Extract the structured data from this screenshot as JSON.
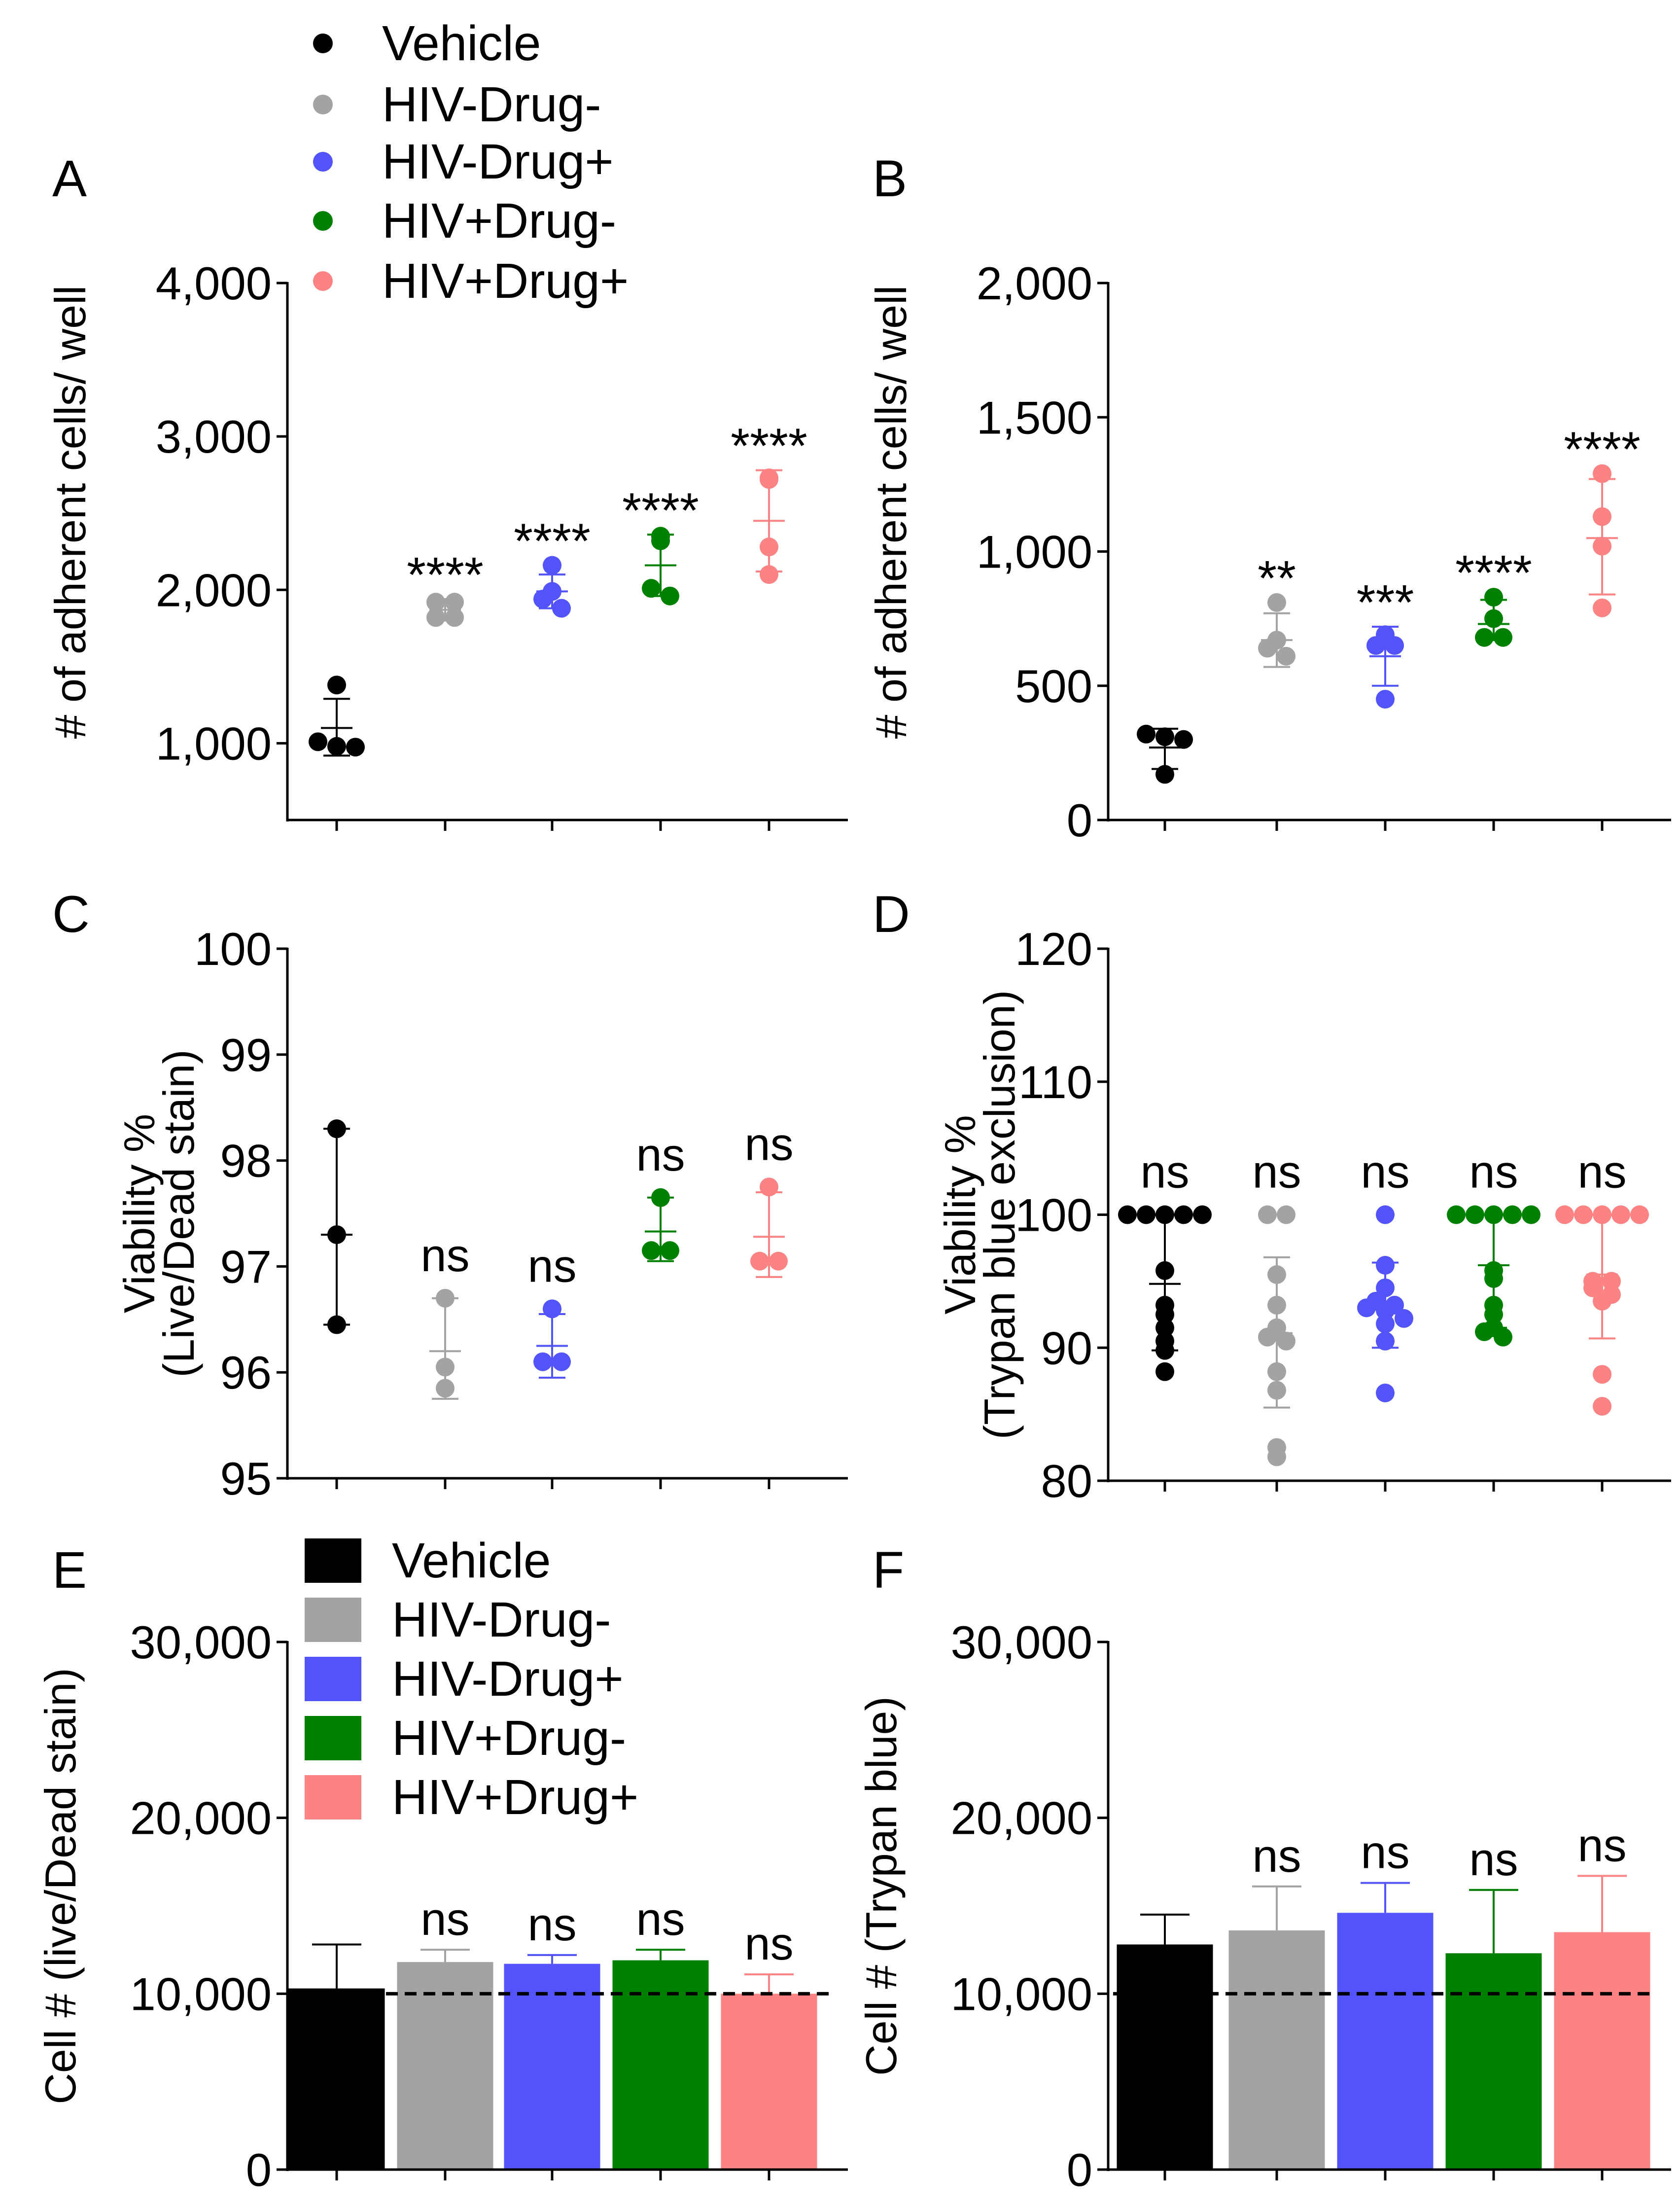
{
  "colors": {
    "Vehicle": "#000000",
    "HIV-Drug-": "#a3a3a6",
    "HIV-Drug+": "#5353fa",
    "HIV+Drug-": "#008000",
    "HIV+Drug+": "#fb8383"
  },
  "top_legend": {
    "entries": [
      "Vehicle",
      "HIV-Drug-",
      "HIV-Drug+",
      "HIV+Drug-",
      "HIV+Drug+"
    ]
  },
  "bar_legend": {
    "entries": [
      "Vehicle",
      "HIV-Drug-",
      "HIV-Drug+",
      "HIV+Drug-",
      "HIV+Drug+"
    ]
  },
  "chart_data": [
    {
      "panel": "A",
      "type": "scatter",
      "ylabel": "# of adherent cells/ well",
      "ylim": [
        500,
        4000
      ],
      "yticks": [
        1000,
        2000,
        3000,
        4000
      ],
      "ytick_labels": [
        "1,000",
        "2,000",
        "3,000",
        "4,000"
      ],
      "series": [
        {
          "name": "Vehicle",
          "points": [
            1380,
            1010,
            980,
            975
          ],
          "mean": 1100,
          "err": [
            920,
            1290
          ],
          "sig": ""
        },
        {
          "name": "HIV-Drug-",
          "points": [
            1920,
            1920,
            1820,
            1820
          ],
          "mean": 1870,
          "err": [
            1800,
            1940
          ],
          "sig": "****"
        },
        {
          "name": "HIV-Drug+",
          "points": [
            2160,
            1990,
            1940,
            1880
          ],
          "mean": 1990,
          "err": [
            1880,
            2100
          ],
          "sig": "****"
        },
        {
          "name": "HIV+Drug-",
          "points": [
            2350,
            2320,
            2010,
            1960
          ],
          "mean": 2160,
          "err": [
            1960,
            2360
          ],
          "sig": "****"
        },
        {
          "name": "HIV+Drug+",
          "points": [
            2730,
            2720,
            2280,
            2100
          ],
          "mean": 2450,
          "err": [
            2120,
            2780
          ],
          "sig": "****"
        }
      ]
    },
    {
      "panel": "B",
      "type": "scatter",
      "ylabel": "# of adherent cells/ well",
      "ylim": [
        0,
        2000
      ],
      "yticks": [
        0,
        500,
        1000,
        1500,
        2000
      ],
      "ytick_labels": [
        "0",
        "500",
        "1,000",
        "1,500",
        "2,000"
      ],
      "series": [
        {
          "name": "Vehicle",
          "points": [
            320,
            310,
            300,
            170
          ],
          "mean": 270,
          "err": [
            190,
            340
          ],
          "sig": ""
        },
        {
          "name": "HIV-Drug-",
          "points": [
            810,
            670,
            640,
            610
          ],
          "mean": 670,
          "err": [
            570,
            770
          ],
          "sig": "**"
        },
        {
          "name": "HIV-Drug+",
          "points": [
            690,
            650,
            650,
            450
          ],
          "mean": 610,
          "err": [
            500,
            720
          ],
          "sig": "***"
        },
        {
          "name": "HIV+Drug-",
          "points": [
            830,
            750,
            680,
            680
          ],
          "mean": 730,
          "err": [
            670,
            820
          ],
          "sig": "****"
        },
        {
          "name": "HIV+Drug+",
          "points": [
            1290,
            1130,
            1020,
            790
          ],
          "mean": 1050,
          "err": [
            840,
            1270
          ],
          "sig": "****"
        }
      ]
    },
    {
      "panel": "C",
      "type": "scatter",
      "ylabel": "Viability %",
      "ylabel2": "(Live/Dead stain)",
      "ylim": [
        95,
        100
      ],
      "yticks": [
        95,
        96,
        97,
        98,
        99,
        100
      ],
      "ytick_labels": [
        "95",
        "96",
        "97",
        "98",
        "99",
        "100"
      ],
      "series": [
        {
          "name": "Vehicle",
          "points": [
            98.3,
            97.3,
            96.45
          ],
          "mean": 97.3,
          "err": [
            96.45,
            98.3
          ],
          "sig": ""
        },
        {
          "name": "HIV-Drug-",
          "points": [
            96.7,
            96.05,
            95.85
          ],
          "mean": 96.2,
          "err": [
            95.75,
            96.7
          ],
          "sig": "ns"
        },
        {
          "name": "HIV-Drug+",
          "points": [
            96.6,
            96.1,
            96.1
          ],
          "mean": 96.25,
          "err": [
            95.95,
            96.55
          ],
          "sig": "ns"
        },
        {
          "name": "HIV+Drug-",
          "points": [
            97.65,
            97.15,
            97.15
          ],
          "mean": 97.33,
          "err": [
            97.05,
            97.65
          ],
          "sig": "ns"
        },
        {
          "name": "HIV+Drug+",
          "points": [
            97.75,
            97.05,
            97.05
          ],
          "mean": 97.28,
          "err": [
            96.9,
            97.7
          ],
          "sig": "ns"
        }
      ]
    },
    {
      "panel": "D",
      "type": "scatter",
      "ylabel": "Viability %",
      "ylabel2": "(Trypan blue exclusion)",
      "ylim": [
        80,
        120
      ],
      "yticks": [
        80,
        90,
        100,
        110,
        120
      ],
      "ytick_labels": [
        "80",
        "90",
        "100",
        "110",
        "120"
      ],
      "series": [
        {
          "name": "Vehicle",
          "points": [
            100,
            100,
            100,
            100,
            100,
            95.8,
            93.2,
            92.5,
            91.5,
            90.5,
            89.8,
            88.2
          ],
          "mean": 94.8,
          "err": [
            89.8,
            100
          ],
          "sig": "ns"
        },
        {
          "name": "HIV-Drug-",
          "points": [
            100,
            100,
            95.5,
            93.2,
            91.5,
            90.8,
            90.5,
            88.2,
            86.8,
            82.5,
            81.8
          ],
          "mean": 91.1,
          "err": [
            85.5,
            96.8
          ],
          "sig": "ns"
        },
        {
          "name": "HIV-Drug+",
          "points": [
            100,
            96.2,
            94.5,
            93.5,
            93.2,
            93,
            92.8,
            92.2,
            91.8,
            90.5,
            86.6
          ],
          "mean": 93.0,
          "err": [
            90,
            96.4
          ],
          "sig": "ns"
        },
        {
          "name": "HIV+Drug-",
          "points": [
            100,
            100,
            100,
            100,
            100,
            95.8,
            95.2,
            93.2,
            92.5,
            91.5,
            91.2,
            90.8
          ],
          "mean": 96.2,
          "err": [
            91.5,
            100
          ],
          "sig": "ns"
        },
        {
          "name": "HIV+Drug+",
          "points": [
            100,
            100,
            100,
            100,
            100,
            95,
            95,
            94.5,
            94,
            93.5,
            88,
            85.6
          ],
          "mean": 95.5,
          "err": [
            90.7,
            100
          ],
          "sig": "ns"
        }
      ]
    },
    {
      "panel": "E",
      "type": "bar",
      "ylabel": "Cell # (live/Dead stain)",
      "ylim": [
        0,
        30000
      ],
      "yticks": [
        0,
        10000,
        20000,
        30000
      ],
      "ytick_labels": [
        "0",
        "10,000",
        "20,000",
        "30,000"
      ],
      "reference_line": 10000,
      "series": [
        {
          "name": "Vehicle",
          "value": 10300,
          "err": 12800,
          "sig": ""
        },
        {
          "name": "HIV-Drug-",
          "value": 11800,
          "err": 12500,
          "sig": "ns"
        },
        {
          "name": "HIV-Drug+",
          "value": 11700,
          "err": 12200,
          "sig": "ns"
        },
        {
          "name": "HIV+Drug-",
          "value": 11900,
          "err": 12500,
          "sig": "ns"
        },
        {
          "name": "HIV+Drug+",
          "value": 10000,
          "err": 11100,
          "sig": "ns"
        }
      ]
    },
    {
      "panel": "F",
      "type": "bar",
      "ylabel": "Cell # (Trypan blue)",
      "ylim": [
        0,
        30000
      ],
      "yticks": [
        0,
        10000,
        20000,
        30000
      ],
      "ytick_labels": [
        "0",
        "10,000",
        "20,000",
        "30,000"
      ],
      "reference_line": 10000,
      "series": [
        {
          "name": "Vehicle",
          "value": 12800,
          "err": 14500,
          "sig": ""
        },
        {
          "name": "HIV-Drug-",
          "value": 13600,
          "err": 16100,
          "sig": "ns"
        },
        {
          "name": "HIV-Drug+",
          "value": 14600,
          "err": 16300,
          "sig": "ns"
        },
        {
          "name": "HIV+Drug-",
          "value": 12300,
          "err": 15900,
          "sig": "ns"
        },
        {
          "name": "HIV+Drug+",
          "value": 13500,
          "err": 16700,
          "sig": "ns"
        }
      ]
    }
  ]
}
